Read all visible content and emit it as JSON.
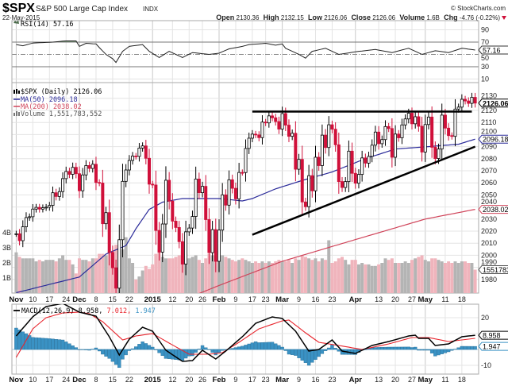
{
  "header": {
    "symbol": "$SPX",
    "name": "S&P 500 Large Cap Index",
    "exchange": "INDX",
    "copyright": "© StockCharts.com",
    "date": "22-May-2015",
    "open_label": "Open",
    "open": "2130.36",
    "high_label": "High",
    "high": "2132.15",
    "low_label": "Low",
    "low": "2126.06",
    "close_label": "Close",
    "close": "2126.06",
    "volume_label": "Volume",
    "volume": "1.6B",
    "chg_label": "Chg",
    "chg": "-4.76 (-0.22%)",
    "chg_icon": "down-triangle-icon",
    "chg_color": "#d0103a"
  },
  "legends": {
    "rsi": "RSI(14) 57.16",
    "price": "$SPX (Daily) 2126.06",
    "ma50": "MA(50) 2096.18",
    "ma200": "MA(200) 2038.02",
    "volume": "Volume 1,551,783,552",
    "macd_prefix": "MACD(12,26,9) 8.958,",
    "macd_signal": "7.012,",
    "macd_hist": "1.947"
  },
  "tags": {
    "rsi": "57.16",
    "price": "2126.06",
    "ma50": "2096.18",
    "ma200": "2038.02",
    "volume": "1551783",
    "macd": "8.958",
    "hist": "1.947"
  },
  "colors": {
    "up": "#000000",
    "down": "#d0103a",
    "ma50": "#2b2b9a",
    "ma200": "#d0445a",
    "vol_up": "#b4b4b4",
    "vol_down": "#f0b4bc",
    "macd": "#000000",
    "signal": "#e8242c",
    "hist": "#3a92c4",
    "rsi_fill": "#5c7a5c",
    "trendline": "#000000"
  },
  "chart_data": [
    {
      "type": "line",
      "panel": "RSI",
      "series_name": "RSI(14)",
      "ylim": [
        0,
        100
      ],
      "yticks": [
        10,
        30,
        50,
        70,
        90
      ],
      "reference_lines": [
        70,
        50,
        30
      ],
      "points": [
        [
          "2014-11-03",
          66
        ],
        [
          "2014-11-05",
          64
        ],
        [
          "2014-11-10",
          68.5
        ],
        [
          "2014-11-18",
          70
        ],
        [
          "2014-11-24",
          72
        ],
        [
          "2014-11-28",
          72
        ],
        [
          "2014-12-01",
          63
        ],
        [
          "2014-12-03",
          68
        ],
        [
          "2014-12-08",
          67
        ],
        [
          "2014-12-09",
          61
        ],
        [
          "2014-12-11",
          50
        ],
        [
          "2014-12-15",
          43
        ],
        [
          "2014-12-16",
          37
        ],
        [
          "2014-12-18",
          55
        ],
        [
          "2014-12-22",
          63
        ],
        [
          "2014-12-29",
          66
        ],
        [
          "2014-12-31",
          55
        ],
        [
          "2015-01-06",
          45
        ],
        [
          "2015-01-09",
          55
        ],
        [
          "2015-01-15",
          45
        ],
        [
          "2015-01-21",
          53
        ],
        [
          "2015-01-28",
          50
        ],
        [
          "2015-02-02",
          52
        ],
        [
          "2015-02-05",
          59
        ],
        [
          "2015-02-11",
          63
        ],
        [
          "2015-02-13",
          66
        ],
        [
          "2015-02-23",
          68
        ],
        [
          "2015-02-26",
          65
        ],
        [
          "2015-03-02",
          67
        ],
        [
          "2015-03-03",
          60
        ],
        [
          "2015-03-09",
          50
        ],
        [
          "2015-03-11",
          44
        ],
        [
          "2015-03-13",
          55
        ],
        [
          "2015-03-19",
          60
        ],
        [
          "2015-03-25",
          50
        ],
        [
          "2015-04-02",
          55
        ],
        [
          "2015-04-10",
          58
        ],
        [
          "2015-04-17",
          53
        ],
        [
          "2015-04-24",
          60
        ],
        [
          "2015-04-30",
          50
        ],
        [
          "2015-05-06",
          56
        ],
        [
          "2015-05-12",
          53
        ],
        [
          "2015-05-18",
          60
        ],
        [
          "2015-05-22",
          57.16
        ]
      ]
    },
    {
      "type": "candlestick",
      "panel": "Price",
      "ylim": [
        1975,
        2135
      ],
      "yticks": [
        1980,
        1990,
        2000,
        2010,
        2020,
        2030,
        2040,
        2050,
        2060,
        2070,
        2080,
        2090,
        2100,
        2110,
        2120,
        2130
      ],
      "trading_days": {
        "2014-11": [
          3,
          4,
          5,
          6,
          7,
          10,
          11,
          12,
          13,
          14,
          17,
          18,
          19,
          20,
          21,
          24,
          25,
          26,
          28
        ],
        "2014-12": [
          1,
          2,
          3,
          4,
          5,
          8,
          9,
          10,
          11,
          12,
          15,
          16,
          17,
          18,
          19,
          22,
          23,
          24,
          26,
          29,
          30,
          31
        ],
        "2015-01": [
          2,
          5,
          6,
          7,
          8,
          9,
          12,
          13,
          14,
          15,
          16,
          20,
          21,
          22,
          23,
          26,
          27,
          28,
          29,
          30
        ],
        "2015-02": [
          2,
          3,
          4,
          5,
          6,
          9,
          10,
          11,
          12,
          13,
          17,
          18,
          19,
          20,
          23,
          24,
          25,
          26,
          27
        ],
        "2015-03": [
          2,
          3,
          4,
          5,
          6,
          9,
          10,
          11,
          12,
          13,
          16,
          17,
          18,
          19,
          20,
          23,
          24,
          25,
          26,
          27,
          30,
          31
        ],
        "2015-04": [
          1,
          2,
          6,
          7,
          8,
          9,
          10,
          13,
          14,
          15,
          16,
          17,
          20,
          21,
          22,
          23,
          24,
          27,
          28,
          29,
          30
        ],
        "2015-05": [
          1,
          4,
          5,
          6,
          7,
          8,
          11,
          12,
          13,
          14,
          15,
          18,
          19,
          20,
          21,
          22
        ]
      },
      "close": [
        2017.81,
        2012.1,
        2023.57,
        2031.21,
        2031.92,
        2038.26,
        2039.68,
        2038.25,
        2039.33,
        2039.82,
        2041.32,
        2051.8,
        2048.72,
        2052.75,
        2063.5,
        2069.41,
        2067.03,
        2072.83,
        2067.56,
        2053.44,
        2066.55,
        2074.33,
        2071.92,
        2075.37,
        2060.31,
        2059.82,
        2026.14,
        2035.33,
        2002.33,
        1989.63,
        1972.74,
        2012.89,
        2061.23,
        2070.65,
        2078.54,
        2082.17,
        2081.88,
        2088.77,
        2090.57,
        2080.35,
        2058.9,
        2058.2,
        2020.58,
        2002.61,
        2025.9,
        2062.14,
        2044.81,
        2028.26,
        2023.03,
        2011.27,
        1992.67,
        2019.42,
        2022.55,
        2032.12,
        2063.15,
        2051.82,
        2057.09,
        2029.55,
        2002.16,
        2021.25,
        1994.99,
        2020.85,
        2050.03,
        2041.51,
        2062.52,
        2055.47,
        2046.74,
        2068.59,
        2068.53,
        2088.48,
        2096.99,
        2100.34,
        2099.68,
        2097.45,
        2110.3,
        2109.66,
        2115.48,
        2113.86,
        2110.74,
        2104.5,
        2117.39,
        2107.78,
        2098.53,
        2101.04,
        2071.26,
        2079.43,
        2044.16,
        2040.24,
        2065.95,
        2053.4,
        2081.19,
        2074.28,
        2099.5,
        2089.27,
        2108.1,
        2104.42,
        2091.5,
        2061.05,
        2056.15,
        2061.02,
        2086.24,
        2067.89,
        2059.69,
        2066.96,
        2080.62,
        2076.33,
        2081.9,
        2091.18,
        2102.06,
        2092.43,
        2095.84,
        2106.63,
        2104.99,
        2081.18,
        2100.4,
        2097.29,
        2107.96,
        2112.93,
        2117.69,
        2108.92,
        2114.76,
        2106.85,
        2085.51,
        2108.29,
        2114.49,
        2089.46,
        2080.15,
        2088.0,
        2116.1,
        2105.33,
        2099.12,
        2098.48,
        2121.1,
        2122.73,
        2129.2,
        2127.83,
        2125.85,
        2130.82,
        2126.06
      ],
      "ma50": [
        [
          "2014-11-03",
          1969
        ],
        [
          "2014-12-01",
          1982
        ],
        [
          "2014-12-11",
          2001
        ],
        [
          "2014-12-19",
          2008
        ],
        [
          "2014-12-24",
          2022
        ],
        [
          "2014-12-31",
          2038
        ],
        [
          "2015-01-07",
          2044
        ],
        [
          "2015-01-15",
          2047
        ],
        [
          "2015-02-02",
          2047
        ],
        [
          "2015-02-11",
          2045
        ],
        [
          "2015-02-17",
          2047
        ],
        [
          "2015-02-26",
          2055
        ],
        [
          "2015-03-10",
          2062
        ],
        [
          "2015-03-23",
          2069
        ],
        [
          "2015-04-07",
          2080
        ],
        [
          "2015-04-20",
          2088
        ],
        [
          "2015-05-04",
          2090
        ],
        [
          "2015-05-15",
          2092
        ],
        [
          "2015-05-22",
          2096.18
        ]
      ],
      "ma200": [
        [
          "2015-01-20",
          1965
        ],
        [
          "2015-02-02",
          1975
        ],
        [
          "2015-03-02",
          1995
        ],
        [
          "2015-04-01",
          2013
        ],
        [
          "2015-05-01",
          2030
        ],
        [
          "2015-05-22",
          2038.02
        ]
      ],
      "trendlines": [
        {
          "from": [
            "2015-02-17",
            2119
          ],
          "to": [
            "2015-05-21",
            2119
          ]
        },
        {
          "from": [
            "2015-02-17",
            2017
          ],
          "to": [
            "2015-05-22",
            2090
          ]
        }
      ]
    },
    {
      "type": "bar",
      "panel": "Volume",
      "unit": "B",
      "yticks": [
        [
          "1B",
          1
        ],
        [
          "2B",
          2
        ],
        [
          "3B",
          3
        ],
        [
          "4B",
          4
        ]
      ],
      "values": [
        2.7,
        2.4,
        2.3,
        2.3,
        2.3,
        2.3,
        2.1,
        2.2,
        2.1,
        2.2,
        2.2,
        2.2,
        2.1,
        2.3,
        2.5,
        2.2,
        2.2,
        1.9,
        1.3,
        2.3,
        2.2,
        2.2,
        2.1,
        2.3,
        2.3,
        2.6,
        2.6,
        2.5,
        2.7,
        2.8,
        3.2,
        3.0,
        2.9,
        3.7,
        2.3,
        2.0,
        0.9,
        1.1,
        1.5,
        1.8,
        1.6,
        1.9,
        2.6,
        2.9,
        2.4,
        2.3,
        2.3,
        2.3,
        2.4,
        2.5,
        2.8,
        2.6,
        2.3,
        2.4,
        2.5,
        2.2,
        2.0,
        2.3,
        2.6,
        2.5,
        2.8,
        2.6,
        2.5,
        2.4,
        2.3,
        2.2,
        2.1,
        2.2,
        2.3,
        2.2,
        2.1,
        2.0,
        2.1,
        2.0,
        2.1,
        2.0,
        2.1,
        2.0,
        2.1,
        2.2,
        2.1,
        2.1,
        2.2,
        2.0,
        2.3,
        2.2,
        2.5,
        2.4,
        2.3,
        2.2,
        2.3,
        2.1,
        2.3,
        2.2,
        3.5,
        2.0,
        2.1,
        2.3,
        2.4,
        2.2,
        1.9,
        2.2,
        2.2,
        1.9,
        2.0,
        1.9,
        1.9,
        1.8,
        1.8,
        1.9,
        2.0,
        2.3,
        2.2,
        2.3,
        2.0,
        2.0,
        2.0,
        2.1,
        2.0,
        2.2,
        2.3,
        2.4,
        2.5,
        2.2,
        2.1,
        2.3,
        2.3,
        2.2,
        2.1,
        2.0,
        2.1,
        2.0,
        2.1,
        2.0,
        2.1,
        2.1,
        2.0,
        2.0,
        1.55
      ]
    },
    {
      "type": "line",
      "panel": "MACD",
      "series_name": "MACD(12,26,9)",
      "ylim": [
        -15,
        29
      ],
      "yticks": [
        20,
        -10
      ],
      "macd": [
        [
          "2014-11-03",
          8.5
        ],
        [
          "2014-11-10",
          20.6
        ],
        [
          "2014-11-14",
          27
        ],
        [
          "2014-11-21",
          29
        ],
        [
          "2014-12-01",
          23.5
        ],
        [
          "2014-12-08",
          21
        ],
        [
          "2014-12-12",
          8
        ],
        [
          "2014-12-17",
          -3.5
        ],
        [
          "2014-12-22",
          6.5
        ],
        [
          "2014-12-29",
          14
        ],
        [
          "2015-01-02",
          11.5
        ],
        [
          "2015-01-08",
          -0.5
        ],
        [
          "2015-01-15",
          -7.5
        ],
        [
          "2015-01-21",
          -7
        ],
        [
          "2015-01-26",
          -0.5
        ],
        [
          "2015-01-30",
          -6
        ],
        [
          "2015-02-04",
          -1
        ],
        [
          "2015-02-11",
          8
        ],
        [
          "2015-02-18",
          16.5
        ],
        [
          "2015-02-25",
          20.5
        ],
        [
          "2015-03-02",
          19.5
        ],
        [
          "2015-03-06",
          11.5
        ],
        [
          "2015-03-12",
          -1
        ],
        [
          "2015-03-17",
          0
        ],
        [
          "2015-03-23",
          6
        ],
        [
          "2015-03-26",
          -1
        ],
        [
          "2015-04-01",
          -2.5
        ],
        [
          "2015-04-09",
          2.5
        ],
        [
          "2015-04-16",
          5
        ],
        [
          "2015-04-24",
          8.5
        ],
        [
          "2015-04-28",
          9
        ],
        [
          "2015-04-29",
          7
        ],
        [
          "2015-05-04",
          7
        ],
        [
          "2015-05-06",
          2.5
        ],
        [
          "2015-05-12",
          3.5
        ],
        [
          "2015-05-18",
          8
        ],
        [
          "2015-05-22",
          8.958
        ]
      ],
      "signal": [
        [
          "2014-11-03",
          -5
        ],
        [
          "2014-11-10",
          13
        ],
        [
          "2014-11-14",
          20
        ],
        [
          "2014-11-21",
          23
        ],
        [
          "2014-12-01",
          23.5
        ],
        [
          "2014-12-04",
          22.5
        ],
        [
          "2014-12-10",
          17.5
        ],
        [
          "2014-12-18",
          6
        ],
        [
          "2014-12-24",
          8.5
        ],
        [
          "2015-01-02",
          10
        ],
        [
          "2015-01-09",
          4
        ],
        [
          "2015-01-20",
          -3
        ],
        [
          "2015-01-28",
          -3
        ],
        [
          "2015-02-03",
          -2
        ],
        [
          "2015-02-10",
          4.5
        ],
        [
          "2015-02-19",
          13
        ],
        [
          "2015-03-02",
          18
        ],
        [
          "2015-03-04",
          18.5
        ],
        [
          "2015-03-11",
          10.5
        ],
        [
          "2015-03-17",
          4.5
        ],
        [
          "2015-03-25",
          2.5
        ],
        [
          "2015-04-06",
          0
        ],
        [
          "2015-04-16",
          3.5
        ],
        [
          "2015-04-27",
          7.5
        ],
        [
          "2015-05-04",
          7.5
        ],
        [
          "2015-05-12",
          5
        ],
        [
          "2015-05-22",
          7.012
        ]
      ]
    }
  ],
  "x_axis": {
    "ticks": [
      [
        "Nov",
        "2014-11-03",
        true
      ],
      [
        "10",
        "2014-11-10",
        false
      ],
      [
        "17",
        "2014-11-17",
        false
      ],
      [
        "24",
        "2014-11-24",
        false
      ],
      [
        "Dec",
        "2014-12-01",
        true
      ],
      [
        "8",
        "2014-12-08",
        false
      ],
      [
        "15",
        "2014-12-15",
        false
      ],
      [
        "22",
        "2014-12-22",
        false
      ],
      [
        "2015",
        "2015-01-02",
        true
      ],
      [
        "12",
        "2015-01-12",
        false
      ],
      [
        "20",
        "2015-01-20",
        false
      ],
      [
        "26",
        "2015-01-26",
        false
      ],
      [
        "Feb",
        "2015-02-02",
        true
      ],
      [
        "9",
        "2015-02-09",
        false
      ],
      [
        "17",
        "2015-02-17",
        false
      ],
      [
        "23",
        "2015-02-23",
        false
      ],
      [
        "Mar",
        "2015-03-02",
        true
      ],
      [
        "9",
        "2015-03-09",
        false
      ],
      [
        "16",
        "2015-03-16",
        false
      ],
      [
        "23",
        "2015-03-23",
        false
      ],
      [
        "Apr",
        "2015-04-01",
        true
      ],
      [
        "13",
        "2015-04-13",
        false
      ],
      [
        "20",
        "2015-04-20",
        false
      ],
      [
        "27",
        "2015-04-27",
        false
      ],
      [
        "May",
        "2015-05-01",
        true
      ],
      [
        "11",
        "2015-05-11",
        false
      ],
      [
        "18",
        "2015-05-18",
        false
      ]
    ]
  }
}
